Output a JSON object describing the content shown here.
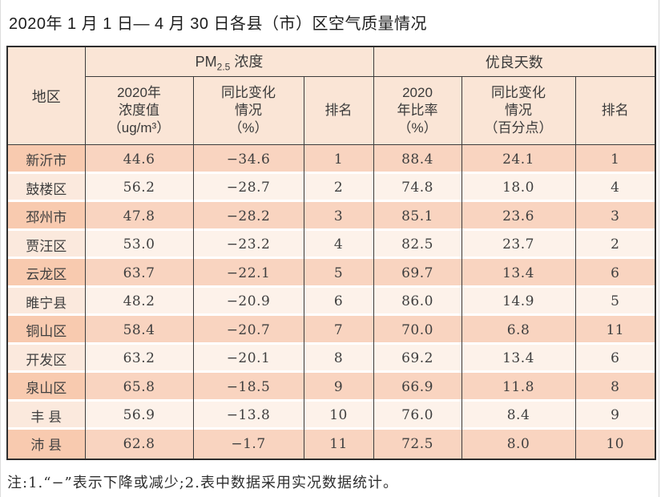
{
  "page": {
    "title": "2020年 1 月 1 日— 4 月 30 日各县（市）区空气质量情况",
    "note": "注:1.“−”表示下降或减少;2.表中数据采用实况数据统计。"
  },
  "colors": {
    "header_bg": "#fae5d6",
    "row_odd_region": "#f8caaf",
    "row_odd_data": "#f9d4c0",
    "row_even_region": "#fbe9dd",
    "row_even_data": "#fdf2ea",
    "border": "#3c3c3c"
  },
  "table": {
    "corner_header": "地区",
    "groups": {
      "pm": {
        "prefix": "PM",
        "sub": "2.5",
        "suffix": " 浓度"
      },
      "days": "优良天数"
    },
    "columns": [
      {
        "label": "2020年\n浓度值\n（ug/m³）"
      },
      {
        "label": "同比变化\n情况\n（%）"
      },
      {
        "label": "排名"
      },
      {
        "label": "2020\n年比率\n（%）"
      },
      {
        "label": "同比变化\n情况\n（百分点）"
      },
      {
        "label": "排名"
      }
    ],
    "rows": [
      [
        "新沂市",
        "44.6",
        "−34.6",
        "1",
        "88.4",
        "24.1",
        "1"
      ],
      [
        "鼓楼区",
        "56.2",
        "−28.7",
        "2",
        "74.8",
        "18.0",
        "4"
      ],
      [
        "邳州市",
        "47.8",
        "−28.2",
        "3",
        "85.1",
        "23.6",
        "3"
      ],
      [
        "贾汪区",
        "53.0",
        "−23.2",
        "4",
        "82.5",
        "23.7",
        "2"
      ],
      [
        "云龙区",
        "63.7",
        "−22.1",
        "5",
        "69.7",
        "13.4",
        "6"
      ],
      [
        "睢宁县",
        "48.2",
        "−20.9",
        "6",
        "86.0",
        "14.9",
        "5"
      ],
      [
        "铜山区",
        "58.4",
        "−20.7",
        "7",
        "70.0",
        "6.8",
        "11"
      ],
      [
        "开发区",
        "63.2",
        "−20.1",
        "8",
        "69.2",
        "13.4",
        "6"
      ],
      [
        "泉山区",
        "65.8",
        "−18.5",
        "9",
        "66.9",
        "11.8",
        "8"
      ],
      [
        "丰 县",
        "56.9",
        "−13.8",
        "10",
        "76.0",
        "8.4",
        "9"
      ],
      [
        "沛 县",
        "62.8",
        "−1.7",
        "11",
        "72.5",
        "8.0",
        "10"
      ]
    ]
  }
}
